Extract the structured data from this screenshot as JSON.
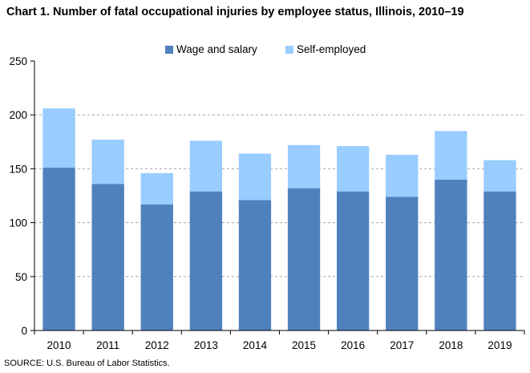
{
  "chart_data": {
    "type": "bar",
    "stacked": true,
    "title": "Chart 1. Number of fatal occupational injuries by employee status, Illinois, 2010–19",
    "categories": [
      "2010",
      "2011",
      "2012",
      "2013",
      "2014",
      "2015",
      "2016",
      "2017",
      "2018",
      "2019"
    ],
    "series": [
      {
        "name": "Wage and salary",
        "color": "#4f81bd",
        "values": [
          151,
          136,
          117,
          129,
          121,
          132,
          129,
          124,
          140,
          129
        ]
      },
      {
        "name": "Self-employed",
        "color": "#99ccff",
        "values": [
          55,
          41,
          29,
          47,
          43,
          40,
          42,
          39,
          45,
          29
        ]
      }
    ],
    "ylim": [
      0,
      250
    ],
    "yticks": [
      0,
      50,
      100,
      150,
      200,
      250
    ],
    "grid": true,
    "legend": "top-center",
    "source": "SOURCE: U.S. Bureau of Labor Statistics."
  }
}
